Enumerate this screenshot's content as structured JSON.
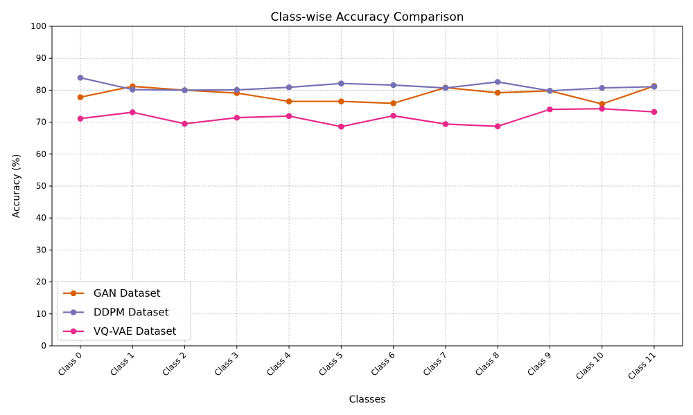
{
  "chart_data": {
    "type": "line",
    "title": "Class-wise Accuracy Comparison",
    "xlabel": "Classes",
    "ylabel": "Accuracy (%)",
    "categories": [
      "Class 0",
      "Class 1",
      "Class 2",
      "Class 3",
      "Class 4",
      "Class 5",
      "Class 6",
      "Class 7",
      "Class 8",
      "Class 9",
      "Class 10",
      "Class 11"
    ],
    "yticks": [
      0,
      10,
      20,
      30,
      40,
      50,
      60,
      70,
      80,
      90,
      100
    ],
    "ylim": [
      0,
      100
    ],
    "grid": true,
    "legend_position": "lower-left",
    "series": [
      {
        "name": "GAN Dataset",
        "color": "#d95f02",
        "values": [
          77.8,
          81.2,
          80.0,
          79.1,
          76.5,
          76.5,
          75.9,
          80.8,
          79.2,
          79.8,
          75.7,
          81.3
        ]
      },
      {
        "name": "DDPM Dataset",
        "color": "#7570b3",
        "values": [
          83.9,
          80.2,
          80.0,
          80.1,
          80.9,
          82.1,
          81.6,
          80.7,
          82.6,
          79.8,
          80.7,
          81.1
        ]
      },
      {
        "name": "VQ-VAE Dataset",
        "color": "#e7298a",
        "values": [
          71.1,
          73.1,
          69.5,
          71.4,
          71.9,
          68.6,
          72.0,
          69.4,
          68.7,
          74.0,
          74.2,
          73.2
        ]
      }
    ]
  }
}
